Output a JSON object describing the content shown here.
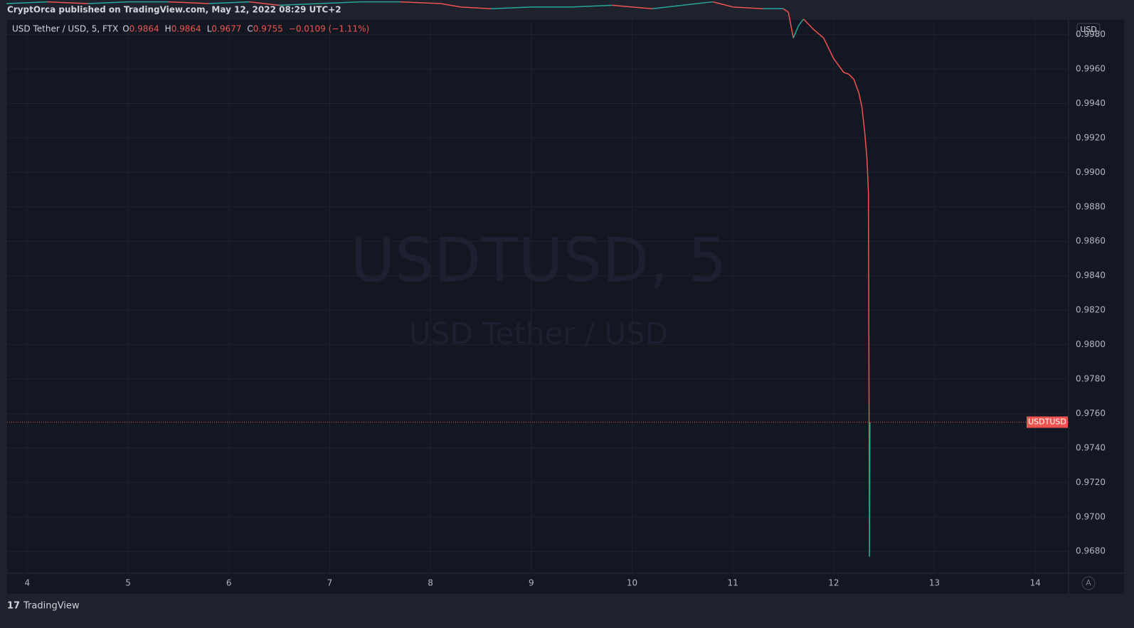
{
  "chart_data": {
    "type": "line",
    "publisher": "CryptOrca published on TradingView.com, May 12, 2022 08:29 UTC+2",
    "symbol": "USD Tether / USD, 5, FTX",
    "ohlc_letters": [
      "O",
      "H",
      "L",
      "C"
    ],
    "ohlc": [
      0.9864,
      0.9864,
      0.9677,
      0.9755
    ],
    "change": "−0.0109 (−1.11%)",
    "watermark": "USDTUSD, 5",
    "watermark_sub": "USD Tether / USD",
    "currency": "USD",
    "last_price_label": "USDTUSD",
    "auto_button": "A",
    "brand": "TradingView",
    "up_color": "#26a69a",
    "down_color": "#ef5350",
    "grid": true,
    "x": [
      3.8,
      4.2,
      4.6,
      5.0,
      5.4,
      5.8,
      6.2,
      6.5,
      6.9,
      7.3,
      7.7,
      8.1,
      8.3,
      8.6,
      9.0,
      9.4,
      9.8,
      10.2,
      10.5,
      10.8,
      11.0,
      11.3,
      11.5,
      11.55,
      11.6,
      11.65,
      11.7,
      11.8,
      11.9,
      12.0,
      12.05,
      12.1,
      12.15,
      12.2,
      12.25,
      12.28,
      12.31,
      12.33,
      12.345,
      12.355,
      12.36
    ],
    "values": [
      0.9998,
      0.9999,
      0.9998,
      0.9999,
      0.9999,
      0.9998,
      0.9999,
      0.9997,
      0.9998,
      0.9999,
      0.9999,
      0.9998,
      0.9996,
      0.9995,
      0.9996,
      0.9996,
      0.9997,
      0.9995,
      0.9997,
      0.9999,
      0.9996,
      0.9995,
      0.9995,
      0.9993,
      0.9978,
      0.9985,
      0.9989,
      0.9983,
      0.9978,
      0.9966,
      0.9962,
      0.9958,
      0.9957,
      0.9954,
      0.9946,
      0.9938,
      0.9922,
      0.9908,
      0.9888,
      0.9677,
      0.9755
    ],
    "xlim": [
      3.8,
      14.33
    ],
    "xticks": [
      4,
      5,
      6,
      7,
      8,
      9,
      10,
      11,
      12,
      13,
      14
    ],
    "ylim": [
      0.96673,
      0.99885
    ],
    "yticks": [
      {
        "value": 0.968,
        "label": "0.9680"
      },
      {
        "value": 0.97,
        "label": "0.9700"
      },
      {
        "value": 0.972,
        "label": "0.9720"
      },
      {
        "value": 0.974,
        "label": "0.9740"
      },
      {
        "value": 0.976,
        "label": "0.9760"
      },
      {
        "value": 0.978,
        "label": "0.9780"
      },
      {
        "value": 0.98,
        "label": "0.9800"
      },
      {
        "value": 0.982,
        "label": "0.9820"
      },
      {
        "value": 0.984,
        "label": "0.9840"
      },
      {
        "value": 0.986,
        "label": "0.9860"
      },
      {
        "value": 0.988,
        "label": "0.9880"
      },
      {
        "value": 0.99,
        "label": "0.9900"
      },
      {
        "value": 0.992,
        "label": "0.9920"
      },
      {
        "value": 0.994,
        "label": "0.9940"
      },
      {
        "value": 0.996,
        "label": "0.9960"
      },
      {
        "value": 0.998,
        "label": "0.9980"
      }
    ]
  }
}
